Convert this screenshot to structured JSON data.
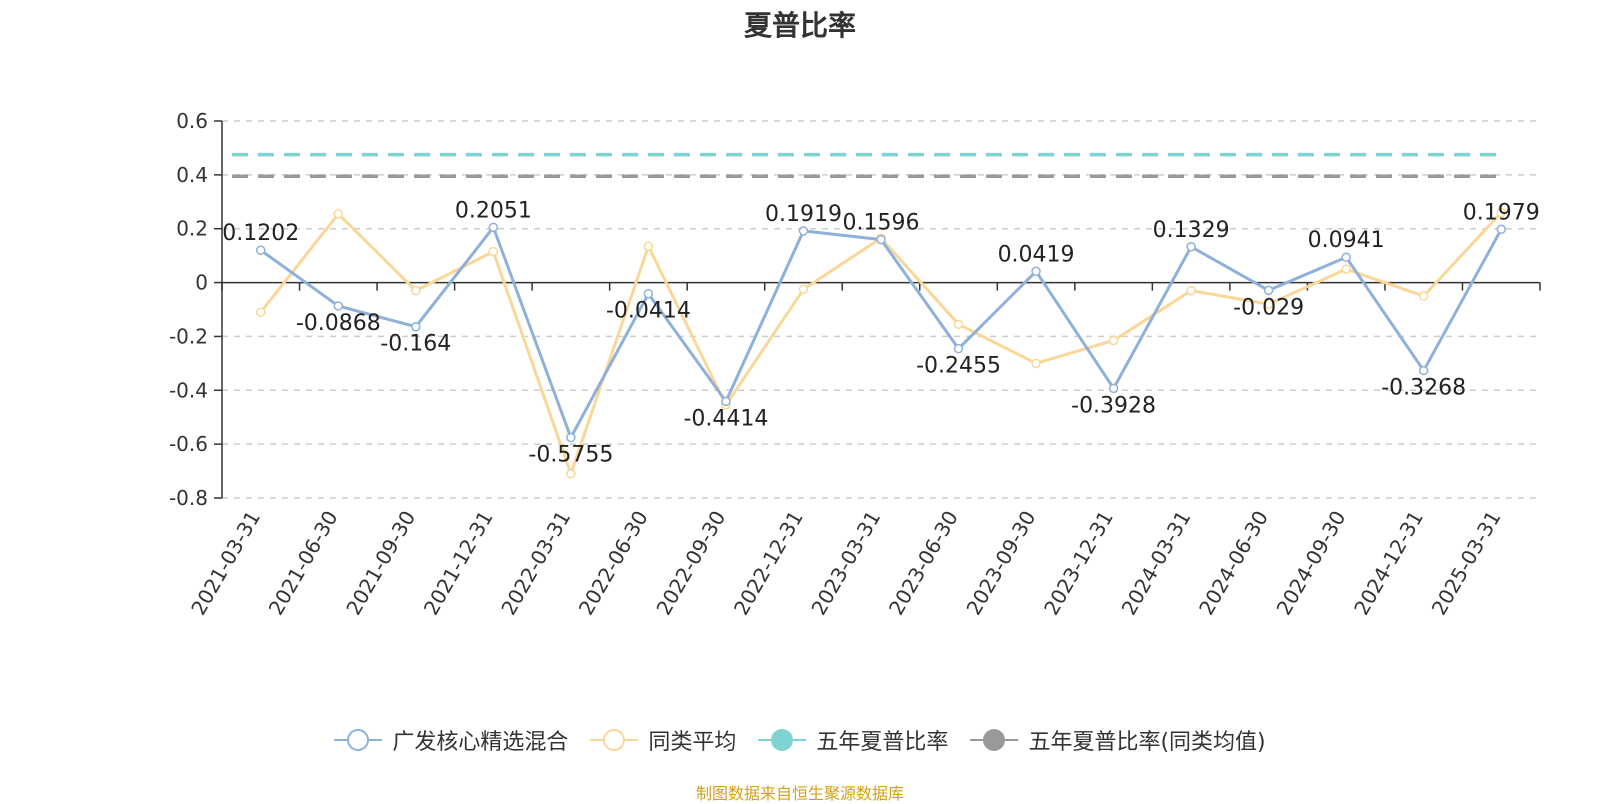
{
  "chart_data": {
    "type": "line",
    "title": "夏普比率",
    "categories": [
      "2021-03-31",
      "2021-06-30",
      "2021-09-30",
      "2021-12-31",
      "2022-03-31",
      "2022-06-30",
      "2022-09-30",
      "2022-12-31",
      "2023-03-31",
      "2023-06-30",
      "2023-09-30",
      "2023-12-31",
      "2024-03-31",
      "2024-06-30",
      "2024-09-30",
      "2024-12-31",
      "2025-03-31"
    ],
    "ylim": [
      -0.8,
      0.6
    ],
    "yticks": [
      "0.6",
      "0.4",
      "0.2",
      "0",
      "-0.2",
      "-0.4",
      "-0.6",
      "-0.8"
    ],
    "ytick_values": [
      0.6,
      0.4,
      0.2,
      0,
      -0.2,
      -0.4,
      -0.6,
      -0.8
    ],
    "grid": "dashed horizontal",
    "legend_position": "bottom",
    "series": [
      {
        "name": "广发核心精选混合",
        "color": "#8eb0d9",
        "values": [
          0.1202,
          -0.0868,
          -0.164,
          0.2051,
          -0.5755,
          -0.0414,
          -0.4414,
          0.1919,
          0.1596,
          -0.2455,
          0.0419,
          -0.3928,
          0.1329,
          -0.029,
          0.0941,
          -0.3268,
          0.1979
        ],
        "labels": [
          "0.1202",
          "-0.0868",
          "-0.164",
          "0.2051",
          "-0.5755",
          "-0.0414",
          "-0.4414",
          "0.1919",
          "0.1596",
          "-0.2455",
          "0.0419",
          "-0.3928",
          "0.1329",
          "-0.029",
          "0.0941",
          "-0.3268",
          "0.1979"
        ]
      },
      {
        "name": "同类平均",
        "color": "#fad799",
        "values": [
          -0.11,
          0.255,
          -0.03,
          0.115,
          -0.71,
          0.135,
          -0.455,
          -0.025,
          0.165,
          -0.155,
          -0.3,
          -0.215,
          -0.03,
          -0.08,
          0.05,
          -0.05,
          0.26
        ]
      },
      {
        "name": "五年夏普比率",
        "color": "#7fd3d3",
        "type": "reference",
        "value": 0.475
      },
      {
        "name": "五年夏普比率(同类均值)",
        "color": "#999999",
        "type": "reference",
        "value": 0.395
      }
    ]
  },
  "legend": [
    {
      "label": "广发核心精选混合",
      "color": "#8eb0d9",
      "marker": "hollow-circle"
    },
    {
      "label": "同类平均",
      "color": "#fad799",
      "marker": "hollow-circle"
    },
    {
      "label": "五年夏普比率",
      "color": "#7fd3d3",
      "marker": "filled-circle"
    },
    {
      "label": "五年夏普比率(同类均值)",
      "color": "#999999",
      "marker": "filled-circle"
    }
  ],
  "source_note": "制图数据来自恒生聚源数据库"
}
